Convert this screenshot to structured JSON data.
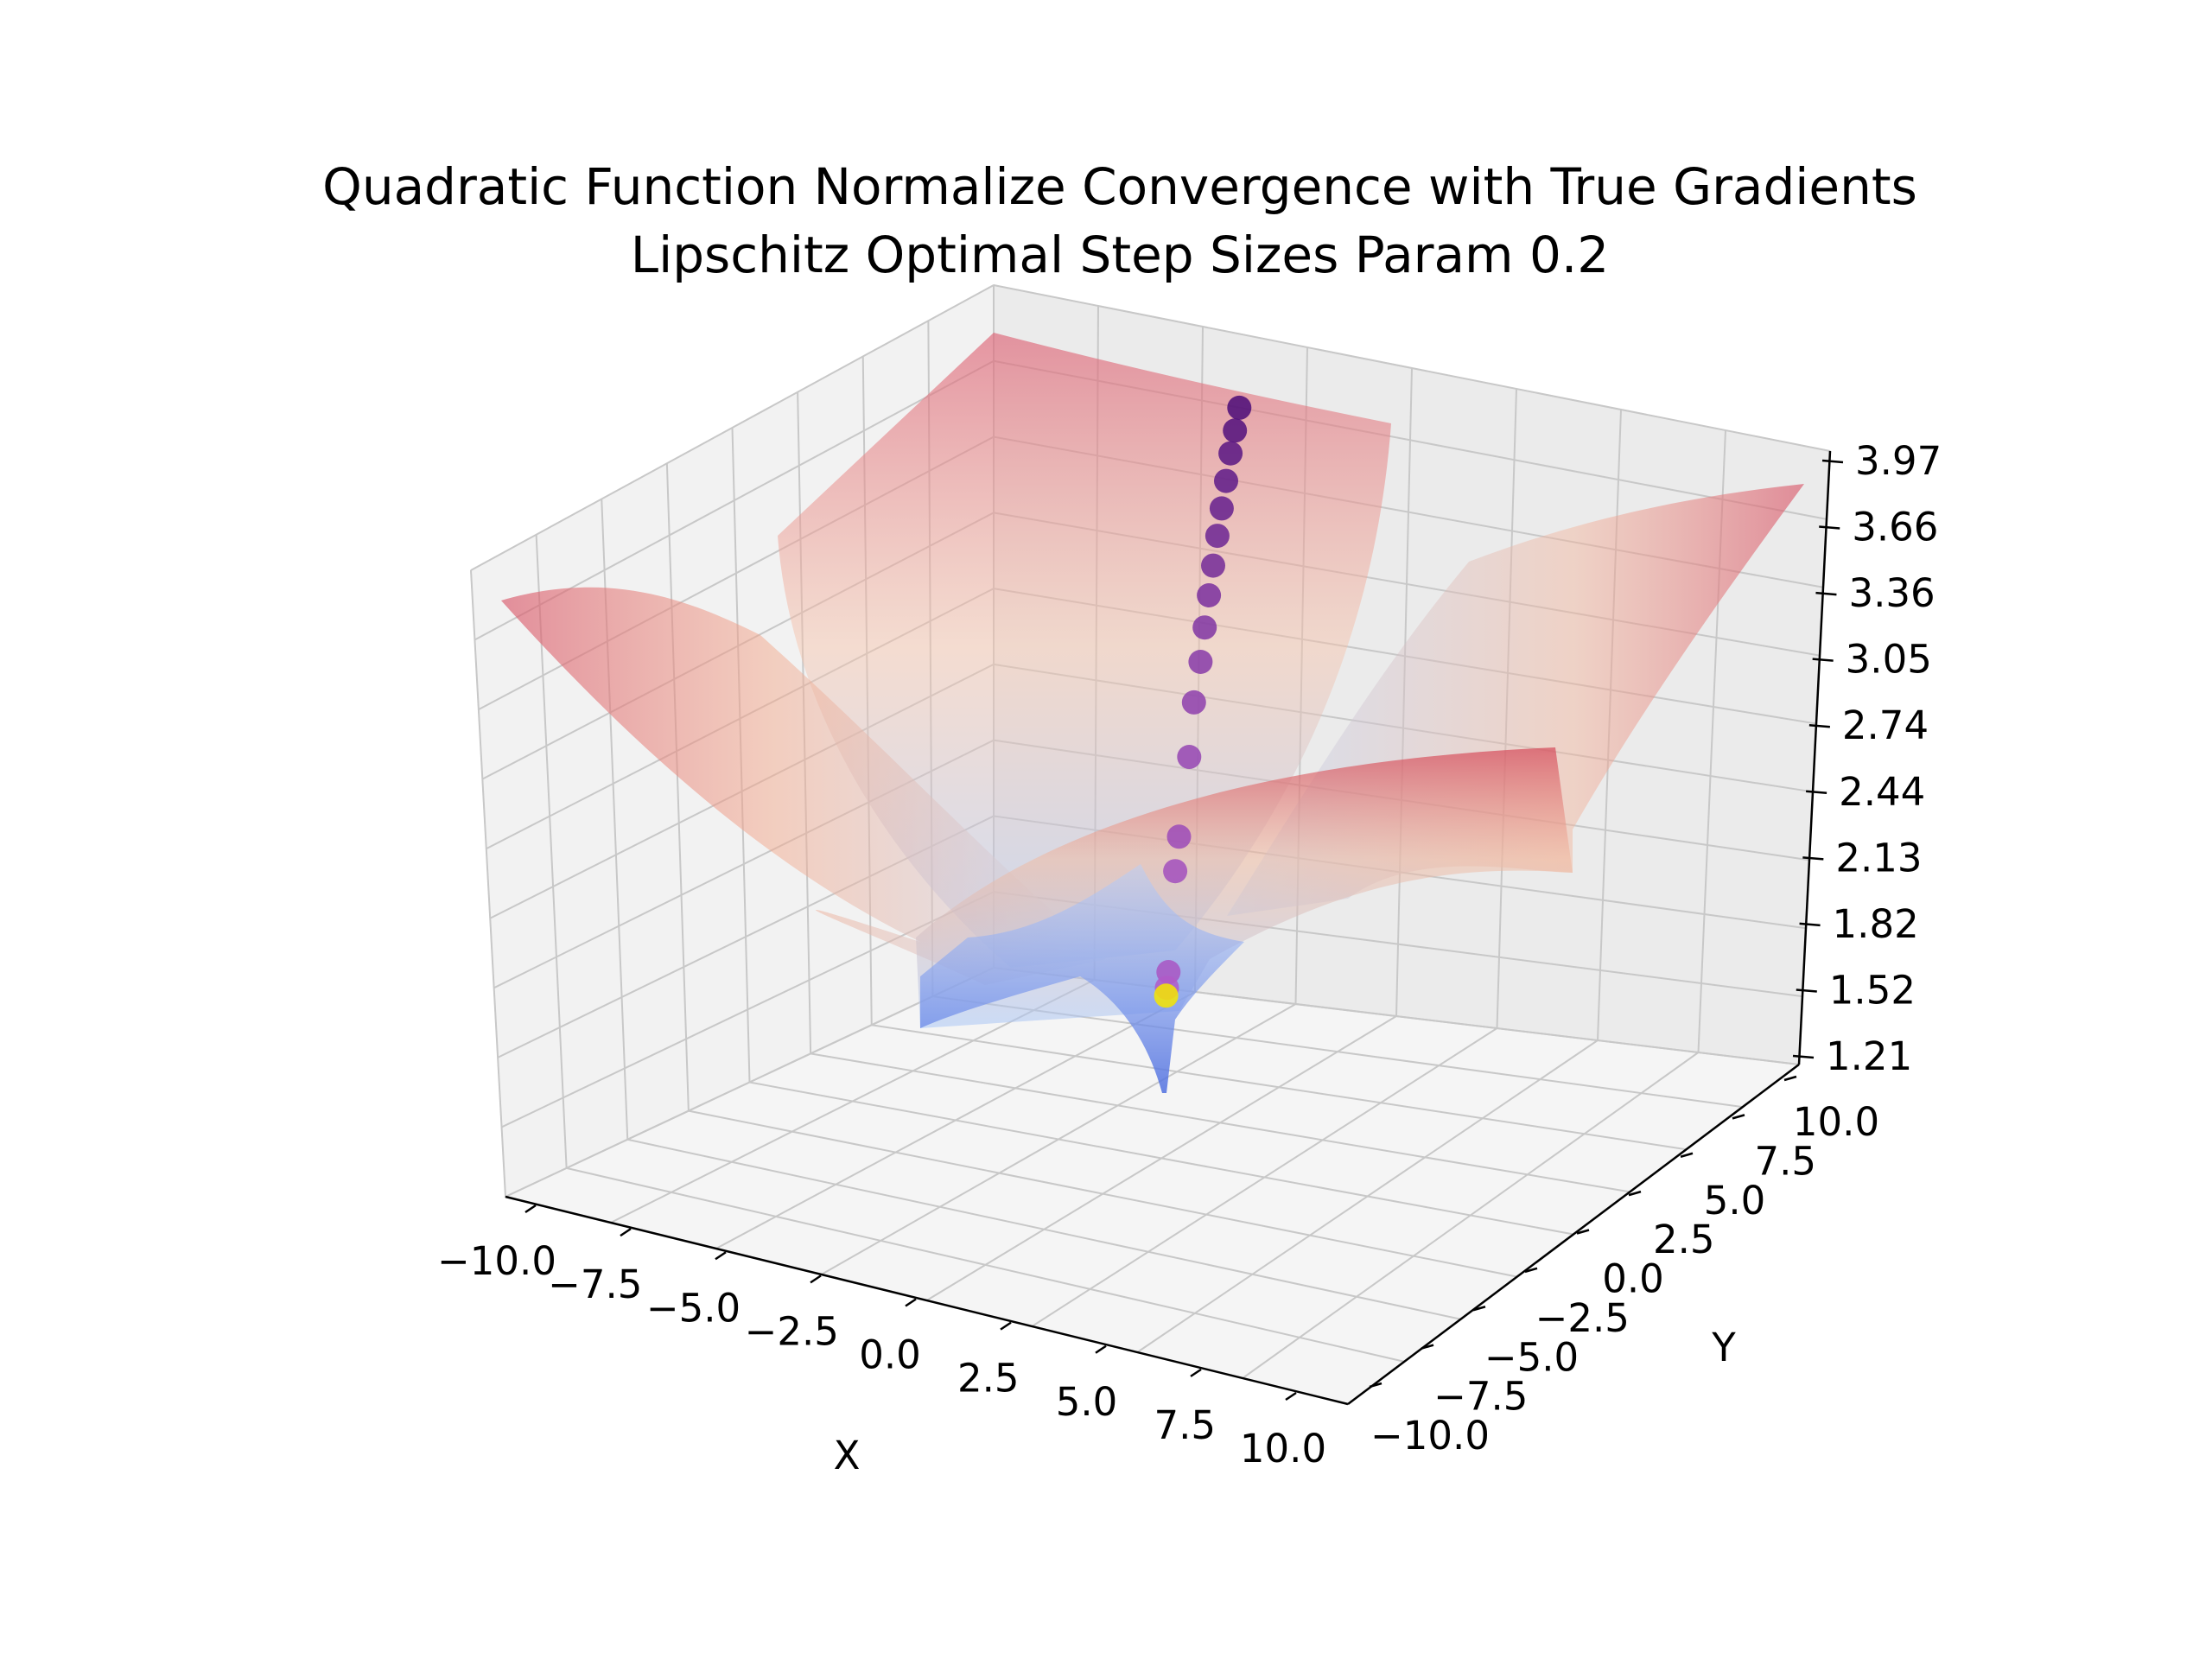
{
  "figure": {
    "title_line1": "Quadratic Function Normalize Convergence with True Gradients",
    "title_line2": "Lipschitz Optimal Step Sizes Param 0.2"
  },
  "chart_data": {
    "type": "surface3d",
    "title": "Quadratic Function Normalize Convergence with True Gradients\nLipschitz Optimal Step Sizes Param 0.2",
    "xlabel": "X",
    "ylabel": "Y",
    "zlabel": "",
    "x_ticks": [
      "−10.0",
      "−7.5",
      "−5.0",
      "−2.5",
      "0.0",
      "2.5",
      "5.0",
      "7.5",
      "10.0"
    ],
    "y_ticks": [
      "−10.0",
      "−7.5",
      "−5.0",
      "−2.5",
      "0.0",
      "2.5",
      "5.0",
      "7.5",
      "10.0"
    ],
    "z_ticks": [
      "1.21",
      "1.52",
      "1.82",
      "2.13",
      "2.44",
      "2.74",
      "3.05",
      "3.36",
      "3.66",
      "3.97"
    ],
    "xlim": [
      -10,
      10
    ],
    "ylim": [
      -10,
      10
    ],
    "zlim": [
      1.21,
      3.97
    ],
    "surface": {
      "colormap": "coolwarm",
      "alpha": 0.5,
      "description": "log-scaled quadratic bowl with minimum near (0,0)"
    },
    "trajectory": {
      "colormap": "plasma",
      "start_color": "#4a0a78",
      "end_color": "#f5e600",
      "points": [
        [
          -3.2,
          8.5,
          3.78
        ],
        [
          -3.0,
          8.0,
          3.72
        ],
        [
          -2.8,
          7.5,
          3.66
        ],
        [
          -2.6,
          7.0,
          3.58
        ],
        [
          -2.4,
          6.5,
          3.5
        ],
        [
          -2.2,
          6.0,
          3.42
        ],
        [
          -2.0,
          5.5,
          3.33
        ],
        [
          -1.8,
          5.0,
          3.24
        ],
        [
          -1.6,
          4.5,
          3.14
        ],
        [
          -1.4,
          4.0,
          3.03
        ],
        [
          -1.2,
          3.4,
          2.9
        ],
        [
          -0.9,
          2.7,
          2.72
        ],
        [
          -0.5,
          1.6,
          2.46
        ],
        [
          -0.3,
          1.1,
          2.35
        ],
        [
          0.0,
          0.3,
          1.98
        ],
        [
          0.02,
          0.2,
          1.92
        ],
        [
          0.03,
          0.15,
          1.89
        ]
      ]
    },
    "grid": true,
    "pane_color": "#f2f2f2"
  }
}
